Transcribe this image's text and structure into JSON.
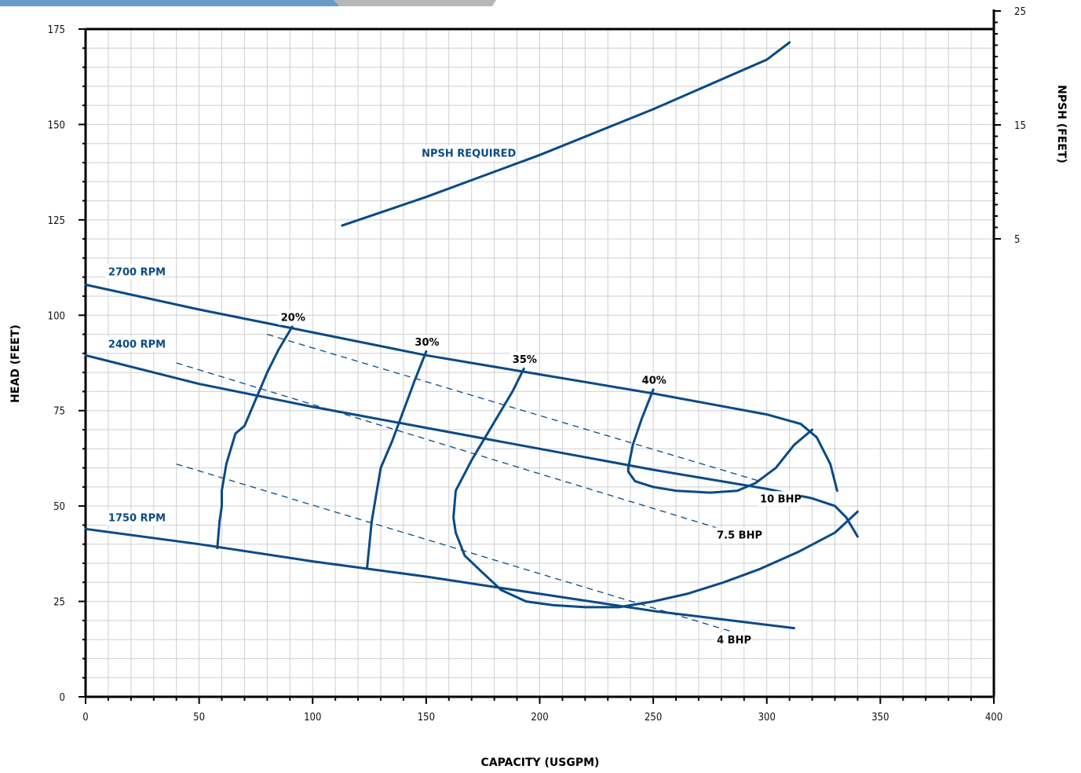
{
  "chart_data": {
    "type": "line",
    "xlabel": "CAPACITY (USGPM)",
    "ylabel": "HEAD (FEET)",
    "y2label": "NPSH (FEET)",
    "xlim": [
      0,
      400
    ],
    "ylim": [
      0,
      175
    ],
    "x_ticks": [
      "0",
      "50",
      "100",
      "150",
      "200",
      "250",
      "300",
      "350",
      "400"
    ],
    "y_ticks": [
      "0",
      "25",
      "50",
      "75",
      "100",
      "125",
      "150",
      "175"
    ],
    "y2_ticks": [
      "5",
      "15",
      "25"
    ],
    "grid": true,
    "series": [
      {
        "name": "2700 RPM",
        "kind": "head",
        "x": [
          0,
          50,
          100,
          150,
          200,
          250,
          300,
          315,
          322,
          328,
          331
        ],
        "y": [
          108,
          101.5,
          95.5,
          89.5,
          84.5,
          79.5,
          74,
          71.5,
          68,
          61,
          54
        ]
      },
      {
        "name": "2400 RPM",
        "kind": "head",
        "x": [
          0,
          50,
          100,
          150,
          200,
          250,
          300,
          320,
          330,
          335,
          340
        ],
        "y": [
          89.5,
          82,
          76,
          70.5,
          65,
          59.5,
          54.5,
          52,
          50,
          47,
          42
        ]
      },
      {
        "name": "1750 RPM",
        "kind": "head",
        "x": [
          0,
          50,
          100,
          150,
          200,
          250,
          312
        ],
        "y": [
          44,
          40,
          35.5,
          31.5,
          27,
          22.5,
          18
        ]
      },
      {
        "name": "NPSH REQUIRED",
        "kind": "npsh",
        "x": [
          113,
          150,
          200,
          250,
          300,
          310
        ],
        "y": [
          123.5,
          131,
          142,
          154,
          167,
          171.5
        ]
      },
      {
        "name": "10 BHP",
        "kind": "bhp",
        "x": [
          80,
          297
        ],
        "y": [
          95,
          56.5
        ]
      },
      {
        "name": "7.5 BHP",
        "kind": "bhp",
        "x": [
          40,
          285
        ],
        "y": [
          87.5,
          43
        ]
      },
      {
        "name": "4 BHP",
        "kind": "bhp",
        "x": [
          40,
          285
        ],
        "y": [
          61,
          17
        ]
      },
      {
        "name": "20%",
        "kind": "efficiency",
        "x": [
          91,
          85,
          80,
          75,
          70,
          66,
          62,
          60,
          60,
          59,
          58
        ],
        "y": [
          97,
          91,
          85,
          78,
          71,
          69,
          61,
          54,
          50,
          46,
          39
        ]
      },
      {
        "name": "30%",
        "kind": "efficiency",
        "x": [
          150,
          145,
          140,
          135,
          130,
          128,
          126,
          125,
          124
        ],
        "y": [
          90.5,
          83,
          75,
          67,
          60,
          53,
          46,
          40,
          34
        ]
      },
      {
        "name": "35%",
        "kind": "efficiency",
        "x": [
          193,
          188,
          180,
          170,
          163,
          162,
          163,
          167,
          174,
          183,
          194,
          206,
          220,
          235,
          250,
          265,
          281,
          297,
          314,
          330,
          340
        ],
        "y": [
          86,
          80,
          72,
          62,
          54,
          47,
          43,
          37,
          33,
          28,
          25,
          24,
          23.5,
          23.5,
          25,
          27,
          30,
          33.5,
          38,
          43,
          48.5
        ]
      },
      {
        "name": "40%",
        "kind": "efficiency",
        "x": [
          250,
          245,
          241,
          239,
          239,
          242,
          250,
          260,
          275,
          287,
          295,
          304,
          312,
          320
        ],
        "y": [
          80.5,
          73,
          66,
          60,
          59,
          56.5,
          55,
          54,
          53.5,
          54,
          56,
          60,
          66,
          70
        ]
      }
    ],
    "labels": {
      "rpm_2700": "2700 RPM",
      "rpm_2400": "2400 RPM",
      "rpm_1750": "1750 RPM",
      "npsh": "NPSH REQUIRED",
      "bhp_10": "10 BHP",
      "bhp_75": "7.5 BHP",
      "bhp_4": "4 BHP",
      "eff_20": "20%",
      "eff_30": "30%",
      "eff_35": "35%",
      "eff_40": "40%"
    }
  },
  "colors": {
    "curve": "#0a4a86",
    "grid": "#cfcfcf",
    "banner_left": "#6a9bc8",
    "banner_right": "#b7b7b7"
  }
}
